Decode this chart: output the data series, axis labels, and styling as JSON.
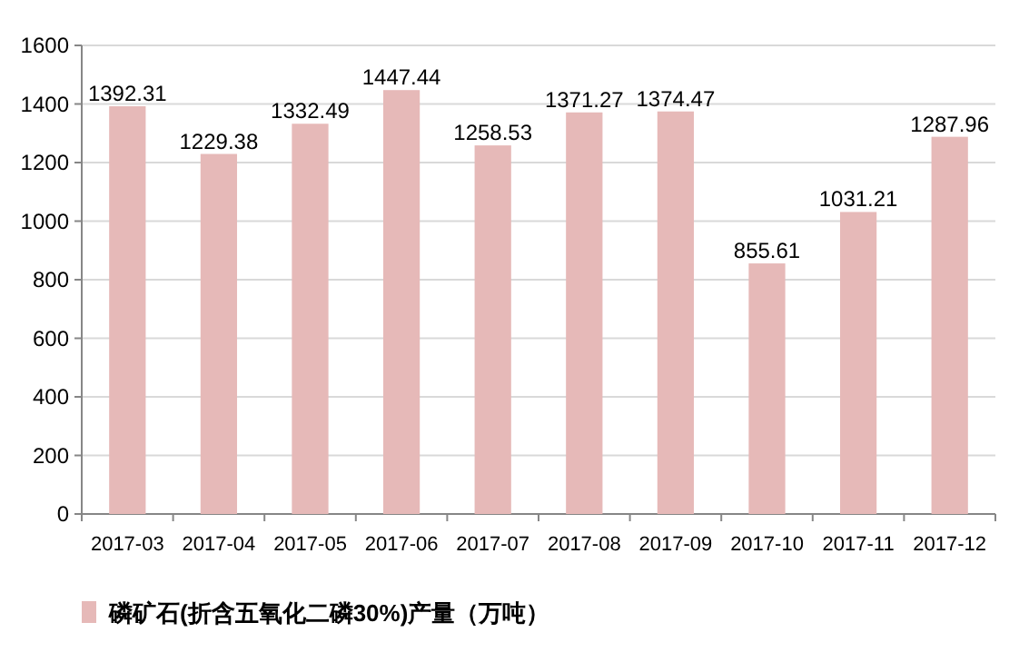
{
  "chart_data": {
    "type": "bar",
    "categories": [
      "2017-03",
      "2017-04",
      "2017-05",
      "2017-06",
      "2017-07",
      "2017-08",
      "2017-09",
      "2017-10",
      "2017-11",
      "2017-12"
    ],
    "series": [
      {
        "name": "磷矿石(折含五氧化二磷30%)产量（万吨）",
        "color": "#e6b9b8",
        "values": [
          1392.31,
          1229.38,
          1332.49,
          1447.44,
          1258.53,
          1371.27,
          1374.47,
          855.61,
          1031.21,
          1287.96
        ]
      }
    ],
    "ylim": [
      0,
      1600
    ],
    "yticks": [
      0,
      200,
      400,
      600,
      800,
      1000,
      1200,
      1400,
      1600
    ],
    "grid": "y",
    "data_labels": true,
    "legend": "bottom"
  }
}
